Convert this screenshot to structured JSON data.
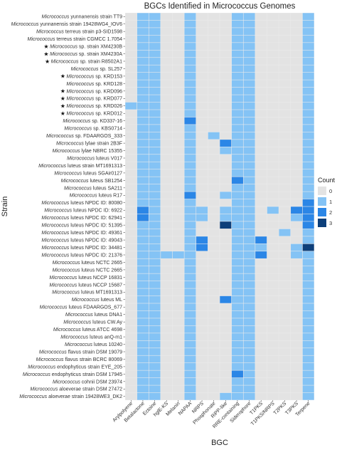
{
  "chart_data": {
    "type": "heatmap",
    "title": "BGCs Identified in Micrococcus Genomes",
    "xlabel": "BGC",
    "ylabel": "Strain",
    "legend": {
      "title": "Count",
      "levels": [
        "0",
        "1",
        "2",
        "3"
      ],
      "colors": [
        "#e3e3e3",
        "#84c3f5",
        "#2b86e6",
        "#0d3f7a"
      ],
      "placement": "right"
    },
    "bgcs": [
      "Arylpolyene",
      "Betalactone",
      "Ectoine",
      "hglE-KS",
      "Melanin",
      "NAPAA",
      "NRPS",
      "Phosphonate",
      "RiPP-like",
      "RRE-containing",
      "Siderophore",
      "T1PKS",
      "T1PKS/NRPS",
      "T2PKS",
      "T3PKS",
      "Terpene"
    ],
    "strains": [
      {
        "genus": "Micrococcus",
        "rest": " yunnanensis strain TT9",
        "star": false,
        "values": [
          0,
          1,
          1,
          0,
          0,
          1,
          0,
          0,
          0,
          1,
          1,
          0,
          0,
          0,
          0,
          1
        ]
      },
      {
        "genus": "Micrococcus",
        "rest": " yunnanensis strain 19428WG4_IOV6",
        "star": false,
        "values": [
          0,
          1,
          1,
          0,
          0,
          1,
          0,
          0,
          0,
          1,
          1,
          0,
          0,
          0,
          0,
          1
        ]
      },
      {
        "genus": "Micrococcus",
        "rest": " terreus strain p3-SID1598",
        "star": false,
        "values": [
          0,
          1,
          1,
          0,
          0,
          1,
          0,
          0,
          0,
          1,
          1,
          0,
          0,
          0,
          0,
          1
        ]
      },
      {
        "genus": "Micrococcus",
        "rest": " terreus strain CGMCC 1.7054",
        "star": false,
        "values": [
          0,
          1,
          1,
          0,
          0,
          1,
          0,
          0,
          0,
          1,
          1,
          0,
          0,
          0,
          0,
          1
        ]
      },
      {
        "genus": "Micrococcus",
        "rest": " sp. strain XM4230B",
        "star": true,
        "values": [
          0,
          1,
          1,
          0,
          0,
          1,
          0,
          0,
          0,
          1,
          1,
          0,
          0,
          0,
          0,
          1
        ]
      },
      {
        "genus": "Micrococcus",
        "rest": " sp. strain XM4230A",
        "star": true,
        "values": [
          0,
          1,
          1,
          0,
          0,
          1,
          0,
          0,
          0,
          1,
          1,
          0,
          0,
          0,
          0,
          1
        ]
      },
      {
        "genus": "Micrococcus",
        "rest": " sp. strain R8502A1",
        "star": true,
        "values": [
          0,
          1,
          1,
          0,
          0,
          1,
          0,
          0,
          0,
          1,
          1,
          0,
          0,
          0,
          0,
          1
        ]
      },
      {
        "genus": "Micrococcus",
        "rest": " sp. SL257",
        "star": false,
        "values": [
          0,
          1,
          1,
          0,
          0,
          1,
          0,
          0,
          0,
          1,
          1,
          0,
          0,
          0,
          0,
          1
        ]
      },
      {
        "genus": "Micrococcus",
        "rest": " sp. KRD153",
        "star": true,
        "values": [
          0,
          1,
          1,
          0,
          0,
          1,
          0,
          0,
          0,
          1,
          1,
          0,
          0,
          0,
          0,
          1
        ]
      },
      {
        "genus": "Micrococcus",
        "rest": " sp. KRD128",
        "star": false,
        "values": [
          0,
          1,
          1,
          0,
          0,
          1,
          0,
          0,
          0,
          1,
          1,
          0,
          0,
          0,
          0,
          1
        ]
      },
      {
        "genus": "Micrococcus",
        "rest": " sp. KRD096",
        "star": true,
        "values": [
          0,
          1,
          1,
          0,
          0,
          1,
          0,
          0,
          0,
          1,
          1,
          0,
          0,
          0,
          0,
          1
        ]
      },
      {
        "genus": "Micrococcus",
        "rest": " sp. KRD077",
        "star": true,
        "values": [
          0,
          1,
          1,
          0,
          0,
          1,
          0,
          0,
          0,
          1,
          1,
          0,
          0,
          0,
          0,
          1
        ]
      },
      {
        "genus": "Micrococcus",
        "rest": " sp. KRD026",
        "star": true,
        "values": [
          1,
          1,
          1,
          0,
          0,
          1,
          0,
          0,
          0,
          1,
          1,
          0,
          0,
          0,
          0,
          1
        ]
      },
      {
        "genus": "Micrococcus",
        "rest": " sp. KRD012",
        "star": true,
        "values": [
          0,
          1,
          1,
          0,
          0,
          1,
          0,
          0,
          0,
          1,
          1,
          0,
          0,
          0,
          0,
          1
        ]
      },
      {
        "genus": "Micrococcus",
        "rest": " sp. KD337-16",
        "star": false,
        "values": [
          0,
          1,
          1,
          0,
          0,
          2,
          0,
          0,
          0,
          1,
          1,
          0,
          0,
          0,
          0,
          1
        ]
      },
      {
        "genus": "Micrococcus",
        "rest": " sp. KBS0714",
        "star": false,
        "values": [
          0,
          1,
          1,
          0,
          0,
          1,
          0,
          0,
          0,
          1,
          1,
          0,
          0,
          0,
          0,
          1
        ]
      },
      {
        "genus": "Micrococcus",
        "rest": " sp. FDAARGOS_333",
        "star": false,
        "values": [
          0,
          1,
          1,
          0,
          0,
          1,
          0,
          1,
          0,
          1,
          1,
          0,
          0,
          0,
          0,
          1
        ]
      },
      {
        "genus": "Micrococcus",
        "rest": " lylae strain 2B3F",
        "star": false,
        "values": [
          0,
          1,
          1,
          0,
          0,
          1,
          0,
          0,
          2,
          1,
          1,
          0,
          0,
          0,
          0,
          1
        ]
      },
      {
        "genus": "Micrococcus",
        "rest": " lylae NBRC 15355",
        "star": false,
        "values": [
          0,
          1,
          1,
          0,
          0,
          1,
          0,
          0,
          1,
          1,
          1,
          0,
          0,
          0,
          0,
          1
        ]
      },
      {
        "genus": "Micrococcus",
        "rest": " luteus V017",
        "star": false,
        "values": [
          0,
          1,
          1,
          0,
          0,
          1,
          0,
          0,
          0,
          1,
          1,
          0,
          0,
          0,
          0,
          1
        ]
      },
      {
        "genus": "Micrococcus",
        "rest": " luteus strain MT1691313",
        "star": false,
        "values": [
          0,
          1,
          1,
          0,
          0,
          1,
          0,
          0,
          0,
          1,
          1,
          0,
          0,
          0,
          0,
          1
        ]
      },
      {
        "genus": "Micrococcus",
        "rest": " luteus SGAir0127",
        "star": false,
        "values": [
          0,
          1,
          1,
          0,
          0,
          1,
          0,
          0,
          0,
          1,
          1,
          0,
          0,
          0,
          0,
          1
        ]
      },
      {
        "genus": "Micrococcus",
        "rest": " luteus SB1254",
        "star": false,
        "values": [
          0,
          1,
          1,
          0,
          0,
          1,
          0,
          0,
          0,
          2,
          1,
          0,
          0,
          0,
          0,
          1
        ]
      },
      {
        "genus": "Micrococcus",
        "rest": " luteus SA211",
        "star": false,
        "values": [
          0,
          1,
          1,
          0,
          0,
          1,
          0,
          0,
          0,
          1,
          1,
          0,
          0,
          0,
          0,
          1
        ]
      },
      {
        "genus": "Micrococcus",
        "rest": " luteus R17",
        "star": false,
        "values": [
          0,
          1,
          1,
          0,
          0,
          2,
          0,
          0,
          1,
          1,
          1,
          0,
          0,
          0,
          0,
          1
        ]
      },
      {
        "genus": "Micrococcus",
        "rest": " luteus NPDC ID: 80080",
        "star": false,
        "values": [
          0,
          1,
          1,
          0,
          0,
          1,
          0,
          0,
          0,
          1,
          1,
          0,
          0,
          0,
          0,
          2
        ]
      },
      {
        "genus": "Micrococcus",
        "rest": " luteus NPDC ID: 6922",
        "star": false,
        "values": [
          0,
          2,
          1,
          0,
          0,
          1,
          1,
          0,
          1,
          1,
          1,
          0,
          1,
          0,
          2,
          2
        ]
      },
      {
        "genus": "Micrococcus",
        "rest": " luteus NPDC ID: 62941",
        "star": false,
        "values": [
          0,
          2,
          1,
          0,
          0,
          1,
          1,
          0,
          1,
          1,
          1,
          0,
          0,
          0,
          1,
          2
        ]
      },
      {
        "genus": "Micrococcus",
        "rest": " luteus NPDC ID: 51395",
        "star": false,
        "values": [
          0,
          1,
          1,
          0,
          0,
          1,
          0,
          0,
          3,
          1,
          1,
          0,
          0,
          0,
          0,
          2
        ]
      },
      {
        "genus": "Micrococcus",
        "rest": " luteus NPDC ID: 49361",
        "star": false,
        "values": [
          0,
          1,
          1,
          0,
          0,
          1,
          0,
          0,
          0,
          1,
          1,
          0,
          0,
          1,
          0,
          1
        ]
      },
      {
        "genus": "Micrococcus",
        "rest": " luteus NPDC ID: 49043",
        "star": false,
        "values": [
          0,
          1,
          1,
          0,
          0,
          1,
          2,
          0,
          0,
          1,
          1,
          2,
          0,
          0,
          0,
          1
        ]
      },
      {
        "genus": "Micrococcus",
        "rest": " luteus NPDC ID: 34481",
        "star": false,
        "values": [
          0,
          1,
          1,
          0,
          0,
          1,
          2,
          0,
          0,
          1,
          1,
          1,
          0,
          0,
          1,
          3
        ]
      },
      {
        "genus": "Micrococcus",
        "rest": " luteus NPDC ID: 21376",
        "star": false,
        "values": [
          0,
          1,
          1,
          1,
          1,
          1,
          0,
          0,
          0,
          1,
          1,
          2,
          0,
          0,
          1,
          1
        ]
      },
      {
        "genus": "Micrococcus",
        "rest": " luteus NCTC 2665",
        "star": false,
        "values": [
          0,
          1,
          1,
          0,
          0,
          1,
          0,
          0,
          0,
          1,
          1,
          0,
          0,
          0,
          0,
          1
        ]
      },
      {
        "genus": "Micrococcus",
        "rest": " luteus NCTC 2665",
        "star": false,
        "values": [
          0,
          1,
          1,
          0,
          0,
          1,
          0,
          0,
          0,
          1,
          1,
          0,
          0,
          0,
          0,
          1
        ]
      },
      {
        "genus": "Micrococcus",
        "rest": " luteus NCCP 16831",
        "star": false,
        "values": [
          0,
          1,
          1,
          0,
          0,
          1,
          0,
          0,
          0,
          1,
          1,
          0,
          0,
          0,
          0,
          1
        ]
      },
      {
        "genus": "Micrococcus",
        "rest": " luteus NCCP 15687",
        "star": false,
        "values": [
          0,
          1,
          1,
          0,
          0,
          1,
          0,
          0,
          0,
          1,
          1,
          0,
          0,
          0,
          0,
          1
        ]
      },
      {
        "genus": "Micrococcus",
        "rest": " luteus MT1691313",
        "star": false,
        "values": [
          0,
          1,
          1,
          0,
          0,
          1,
          0,
          0,
          0,
          1,
          1,
          0,
          0,
          0,
          0,
          1
        ]
      },
      {
        "genus": "Micrococcus",
        "rest": " luteus ML",
        "star": false,
        "values": [
          0,
          1,
          1,
          0,
          0,
          1,
          0,
          0,
          2,
          1,
          1,
          0,
          0,
          0,
          0,
          1
        ]
      },
      {
        "genus": "Micrococcus",
        "rest": " luteus FDAARGOS_677",
        "star": false,
        "values": [
          0,
          1,
          1,
          0,
          0,
          1,
          0,
          0,
          0,
          1,
          1,
          0,
          0,
          0,
          0,
          1
        ]
      },
      {
        "genus": "Micrococcus",
        "rest": " luteus DNA1",
        "star": false,
        "values": [
          0,
          1,
          1,
          0,
          0,
          1,
          0,
          0,
          0,
          1,
          1,
          0,
          0,
          0,
          0,
          1
        ]
      },
      {
        "genus": "Micrococcus",
        "rest": " luteus CW.Ay",
        "star": false,
        "values": [
          0,
          1,
          1,
          0,
          0,
          1,
          0,
          0,
          0,
          1,
          1,
          0,
          0,
          0,
          0,
          1
        ]
      },
      {
        "genus": "Micrococcus",
        "rest": " luteus ATCC 4698",
        "star": false,
        "values": [
          0,
          1,
          1,
          0,
          0,
          1,
          0,
          0,
          0,
          1,
          1,
          0,
          0,
          0,
          0,
          1
        ]
      },
      {
        "genus": "Micrococcus",
        "rest": " luteus anQ-m1",
        "star": false,
        "values": [
          0,
          1,
          1,
          0,
          0,
          1,
          0,
          0,
          0,
          1,
          1,
          0,
          0,
          0,
          0,
          1
        ]
      },
      {
        "genus": "Micrococcus",
        "rest": " luteus 10240",
        "star": false,
        "values": [
          0,
          1,
          1,
          0,
          0,
          1,
          0,
          0,
          0,
          1,
          1,
          0,
          0,
          0,
          0,
          1
        ]
      },
      {
        "genus": "Micrococcus",
        "rest": " flavus strain DSM 19079",
        "star": false,
        "values": [
          0,
          1,
          1,
          0,
          0,
          1,
          0,
          0,
          0,
          1,
          1,
          0,
          0,
          0,
          0,
          1
        ]
      },
      {
        "genus": "Micrococcus",
        "rest": " flavus strain BCRC 80069",
        "star": false,
        "values": [
          0,
          1,
          1,
          0,
          0,
          1,
          0,
          0,
          0,
          1,
          1,
          0,
          0,
          0,
          0,
          1
        ]
      },
      {
        "genus": "Micrococcus",
        "rest": " endophyticus strain EYE_205",
        "star": false,
        "values": [
          0,
          1,
          1,
          0,
          0,
          1,
          0,
          0,
          0,
          1,
          1,
          0,
          0,
          0,
          0,
          1
        ]
      },
      {
        "genus": "Micrococcus",
        "rest": " endophyticus strain DSM 17945",
        "star": false,
        "values": [
          0,
          1,
          1,
          0,
          0,
          1,
          0,
          0,
          0,
          2,
          1,
          0,
          0,
          0,
          0,
          1
        ]
      },
      {
        "genus": "Micrococcus",
        "rest": " cohnii DSM 23974",
        "star": false,
        "values": [
          0,
          1,
          1,
          0,
          0,
          1,
          0,
          0,
          0,
          1,
          1,
          0,
          0,
          0,
          0,
          1
        ]
      },
      {
        "genus": "Micrococcus",
        "rest": " aloeverae strain DSM 27472",
        "star": false,
        "values": [
          0,
          1,
          1,
          0,
          0,
          1,
          0,
          0,
          0,
          1,
          1,
          0,
          0,
          0,
          0,
          1
        ]
      },
      {
        "genus": "Micrococcus",
        "rest": " aloeverae strain 19428WE3_DK2",
        "star": false,
        "values": [
          0,
          1,
          1,
          0,
          0,
          1,
          0,
          0,
          1,
          1,
          1,
          0,
          0,
          0,
          0,
          1
        ]
      }
    ]
  }
}
